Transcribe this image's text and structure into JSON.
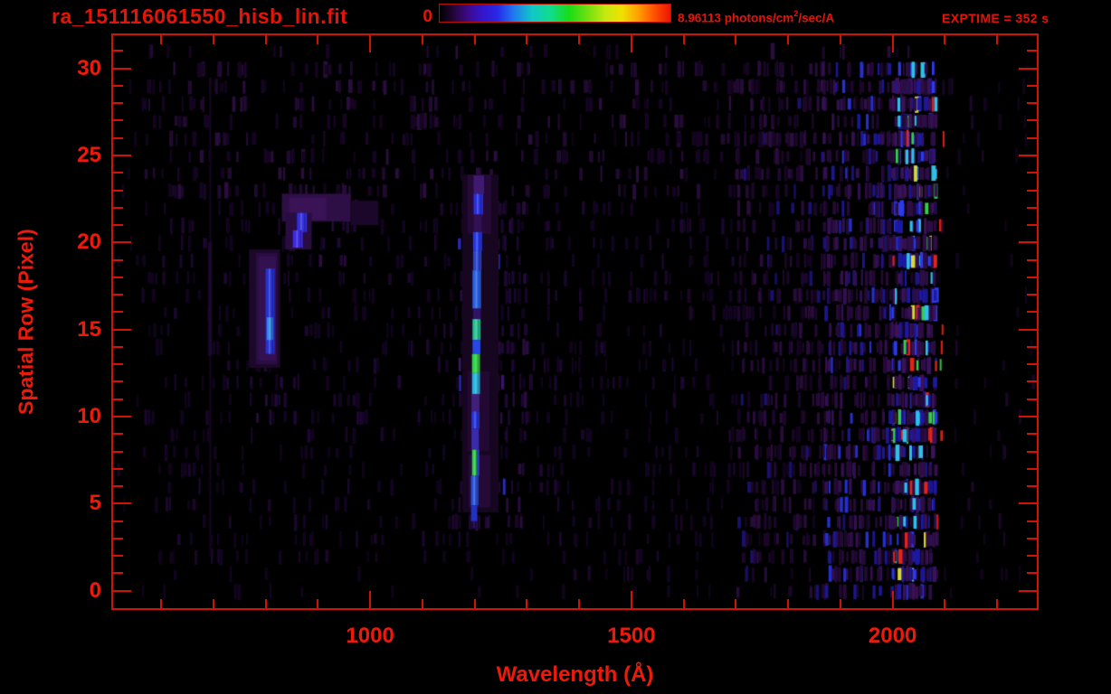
{
  "header": {
    "title": "ra_151116061550_hisb_lin.fit",
    "exptime_label": "EXPTIME = 352 s"
  },
  "colorbar": {
    "min_label": "0",
    "max_label_pre": "8.96113 photons/cm",
    "max_label_sup": "2",
    "max_label_post": "/sec/A",
    "stops": [
      {
        "p": 0,
        "c": "#000000"
      },
      {
        "p": 6,
        "c": "#24063a"
      },
      {
        "p": 12,
        "c": "#3c0a86"
      },
      {
        "p": 18,
        "c": "#3414c8"
      },
      {
        "p": 25,
        "c": "#2828e8"
      },
      {
        "p": 32,
        "c": "#2078f0"
      },
      {
        "p": 40,
        "c": "#10c8c8"
      },
      {
        "p": 48,
        "c": "#10dc8c"
      },
      {
        "p": 56,
        "c": "#18dc18"
      },
      {
        "p": 64,
        "c": "#70e010"
      },
      {
        "p": 72,
        "c": "#c8e810"
      },
      {
        "p": 79,
        "c": "#f0e000"
      },
      {
        "p": 86,
        "c": "#ffa000"
      },
      {
        "p": 93,
        "c": "#ff5000"
      },
      {
        "p": 100,
        "c": "#ee1400"
      }
    ]
  },
  "chart_data": {
    "type": "heatmap",
    "title": "ra_151116061550_hisb_lin.fit",
    "xlabel": "Wavelength (Å)",
    "ylabel": "Spatial Row (Pixel)",
    "xlim": [
      508,
      2276
    ],
    "ylim": [
      -1,
      31.9
    ],
    "x_major_ticks": [
      1000,
      1500,
      2000
    ],
    "x_minor_ticks": {
      "start": 600,
      "end": 2200,
      "step": 100
    },
    "y_major_ticks": [
      0,
      5,
      10,
      15,
      20,
      25,
      30
    ],
    "y_minor_ticks": {
      "start": 0,
      "end": 31,
      "step": 1
    },
    "colorbar_range": [
      0,
      8.96113
    ],
    "colorbar_units": "photons/cm2/sec/A",
    "exposure_time_s": 352,
    "background": "#000000",
    "features": {
      "rects": [
        {
          "wl": [
            768,
            828
          ],
          "rows": [
            12.8,
            19.6
          ],
          "color": "#1c0829"
        },
        {
          "wl": [
            781,
            823
          ],
          "rows": [
            13.0,
            19.4
          ],
          "color": "#2a0d42"
        },
        {
          "wl": [
            786,
            820
          ],
          "rows": [
            13.2,
            19.2
          ],
          "color": "#331050"
        },
        {
          "wl": [
            800,
            817
          ],
          "rows": [
            13.6,
            18.5
          ],
          "color": "#2733d0",
          "streak": true
        },
        {
          "wl": [
            802,
            814
          ],
          "rows": [
            14.4,
            15.7
          ],
          "color": "#2f86e8",
          "streak": true
        },
        {
          "wl": [
            831,
            963
          ],
          "rows": [
            21.2,
            22.8
          ],
          "color": "#2d0f46"
        },
        {
          "wl": [
            845,
            916
          ],
          "rows": [
            21.3,
            22.6
          ],
          "color": "#3a1256"
        },
        {
          "wl": [
            962,
            1016
          ],
          "rows": [
            21.0,
            22.4
          ],
          "color": "#1b0729"
        },
        {
          "wl": [
            838,
            888
          ],
          "rows": [
            19.6,
            21.7
          ],
          "color": "#2a0d40"
        },
        {
          "wl": [
            860,
            879
          ],
          "rows": [
            20.6,
            21.7
          ],
          "color": "#3230dc",
          "streak": true
        },
        {
          "wl": [
            852,
            871
          ],
          "rows": [
            19.7,
            20.7
          ],
          "color": "#3c2ae0",
          "streak": true
        },
        {
          "wl": [
            692,
            696
          ],
          "rows": [
            2,
            29
          ],
          "color": "#140520"
        },
        {
          "wl": [
            690,
            697
          ],
          "rows": [
            13.5,
            20
          ],
          "color": "#1d0830"
        },
        {
          "wl": [
            1176,
            1246
          ],
          "rows": [
            4.5,
            23.9
          ],
          "color": "#170620"
        },
        {
          "wl": [
            1186,
            1232
          ],
          "rows": [
            20.5,
            23.9
          ],
          "color": "#250a38"
        },
        {
          "wl": [
            1186,
            1228
          ],
          "rows": [
            8.0,
            12.6
          ],
          "color": "#220934"
        },
        {
          "wl": [
            1188,
            1230
          ],
          "rows": [
            4.8,
            7.8
          ],
          "color": "#250a38"
        },
        {
          "wl": [
            1198,
            1218
          ],
          "rows": [
            22.8,
            23.85
          ],
          "color": "#3f1a70"
        },
        {
          "wl": [
            1198,
            1216
          ],
          "rows": [
            21.6,
            22.8
          ],
          "color": "#2a30dd",
          "streak": true
        },
        {
          "wl": [
            1198,
            1214
          ],
          "rows": [
            20.6,
            21.6
          ],
          "color": "#321052"
        },
        {
          "wl": [
            1197,
            1214
          ],
          "rows": [
            19.5,
            20.6
          ],
          "color": "#2538e6",
          "streak": true
        },
        {
          "wl": [
            1197,
            1213
          ],
          "rows": [
            18.4,
            19.5
          ],
          "color": "#2b42cc",
          "streak": true
        },
        {
          "wl": [
            1196,
            1212
          ],
          "rows": [
            16.2,
            18.4
          ],
          "color": "#2a62e2",
          "streak": true
        },
        {
          "wl": [
            1197,
            1212
          ],
          "rows": [
            15.6,
            16.2
          ],
          "color": "#2f1266"
        },
        {
          "wl": [
            1196,
            1211
          ],
          "rows": [
            14.4,
            15.6
          ],
          "color": "#26c292",
          "streak": true
        },
        {
          "wl": [
            1196,
            1211
          ],
          "rows": [
            13.6,
            14.4
          ],
          "color": "#2848e6"
        },
        {
          "wl": [
            1195,
            1210
          ],
          "rows": [
            12.5,
            13.6
          ],
          "color": "#2ed246",
          "streak": true
        },
        {
          "wl": [
            1195,
            1210
          ],
          "rows": [
            11.3,
            12.5
          ],
          "color": "#28b2dc",
          "streak": true
        },
        {
          "wl": [
            1194,
            1209
          ],
          "rows": [
            10.3,
            11.3
          ],
          "color": "#40217a"
        },
        {
          "wl": [
            1194,
            1209
          ],
          "rows": [
            9.3,
            10.3
          ],
          "color": "#2635e0",
          "streak": true
        },
        {
          "wl": [
            1194,
            1208
          ],
          "rows": [
            8.1,
            9.3
          ],
          "color": "#3b2aac"
        },
        {
          "wl": [
            1195,
            1205
          ],
          "rows": [
            6.6,
            8.1
          ],
          "color": "#2fc94e",
          "streak": true
        },
        {
          "wl": [
            1205,
            1209
          ],
          "rows": [
            6.6,
            8.1
          ],
          "color": "#2a40d0"
        },
        {
          "wl": [
            1193,
            1207
          ],
          "rows": [
            4.9,
            6.6
          ],
          "color": "#2a52dd",
          "streak": true
        },
        {
          "wl": [
            1193,
            1205
          ],
          "rows": [
            4.0,
            4.9
          ],
          "color": "#2330c4"
        }
      ],
      "noise": [
        {
          "wl": [
            515,
            2270
          ],
          "rows": [
            0,
            31.5
          ],
          "density": 0.05,
          "w": [
            2,
            4
          ],
          "seed": 11,
          "palette": [
            [
              "#10041a",
              3
            ],
            [
              "#1a0626",
              1
            ]
          ]
        },
        {
          "wl": [
            560,
            1850
          ],
          "rows": [
            23,
            31.3
          ],
          "density": 0.17,
          "w": [
            2,
            5
          ],
          "seed": 22,
          "palette": [
            [
              "#150522",
              3
            ],
            [
              "#200a30",
              2
            ],
            [
              "#2a0d3c",
              1
            ]
          ]
        },
        {
          "wl": [
            560,
            1850
          ],
          "rows": [
            2.5,
            23
          ],
          "density": 0.12,
          "w": [
            2,
            4
          ],
          "seed": 33,
          "palette": [
            [
              "#120420",
              3
            ],
            [
              "#1c0730",
              1
            ]
          ]
        },
        {
          "wl": [
            560,
            1850
          ],
          "rows": [
            0,
            2.5
          ],
          "density": 0.03,
          "w": [
            2,
            4
          ],
          "seed": 34,
          "palette": [
            [
              "#120420",
              1
            ]
          ]
        },
        {
          "wl": [
            1700,
            2082
          ],
          "rows": [
            0,
            31.3
          ],
          "density": 0.3,
          "w": [
            2,
            4
          ],
          "seed": 44,
          "palette": [
            [
              "#1b0728",
              5
            ],
            [
              "#280c3a",
              3
            ],
            [
              "#1a1070",
              1
            ]
          ]
        },
        {
          "wl": [
            1862,
            2082
          ],
          "rows": [
            0.5,
            30.6
          ],
          "density": 0.5,
          "w": [
            2,
            4
          ],
          "seed": 55,
          "palette": [
            [
              "#240a36",
              5
            ],
            [
              "#321050",
              3
            ],
            [
              "#1c1690",
              2
            ],
            [
              "#2430cc",
              1
            ]
          ]
        },
        {
          "wl": [
            1997,
            2080
          ],
          "rows": [
            0.5,
            30.6
          ],
          "density": 0.95,
          "w": [
            2,
            5
          ],
          "seed": 66,
          "palette": [
            [
              "#2c0e44",
              26
            ],
            [
              "#3a1258",
              20
            ],
            [
              "#1c18a0",
              16
            ],
            [
              "#2c3ae8",
              12
            ],
            [
              "#2ec0e8",
              8
            ],
            [
              "#30d048",
              5
            ],
            [
              "#e02418",
              4
            ],
            [
              "#d8d838",
              2
            ]
          ]
        },
        {
          "wl": [
            2080,
            2100
          ],
          "rows": [
            1,
            30
          ],
          "density": 0.07,
          "w": [
            2,
            3
          ],
          "seed": 77,
          "palette": [
            [
              "#d81c10",
              3
            ],
            [
              "#30c040",
              1
            ]
          ]
        },
        {
          "wl": [
            1168,
            1258
          ],
          "rows": [
            4,
            24
          ],
          "density": 0.3,
          "w": [
            2,
            4
          ],
          "seed": 88,
          "palette": [
            [
              "#1d0830",
              4
            ],
            [
              "#2a0d42",
              2
            ],
            [
              "#381462",
              1
            ],
            [
              "#2a2ab8",
              1
            ]
          ]
        },
        {
          "wl": [
            1258,
            1302
          ],
          "rows": [
            4,
            23.5
          ],
          "density": 0.22,
          "w": [
            2,
            4
          ],
          "seed": 99,
          "palette": [
            [
              "#1c0730",
              3
            ],
            [
              "#280c3e",
              1
            ]
          ]
        },
        {
          "wl": [
            770,
            832
          ],
          "rows": [
            10.8,
            13.2
          ],
          "density": 0.3,
          "w": [
            2,
            4
          ],
          "seed": 101,
          "palette": [
            [
              "#200a34",
              2
            ],
            [
              "#2c0e46",
              1
            ]
          ]
        },
        {
          "wl": [
            836,
            980
          ],
          "rows": [
            19.5,
            23.3
          ],
          "density": 0.25,
          "w": [
            2,
            4
          ],
          "seed": 102,
          "palette": [
            [
              "#1e0932",
              2
            ],
            [
              "#2a0d40",
              1
            ]
          ]
        }
      ]
    }
  }
}
